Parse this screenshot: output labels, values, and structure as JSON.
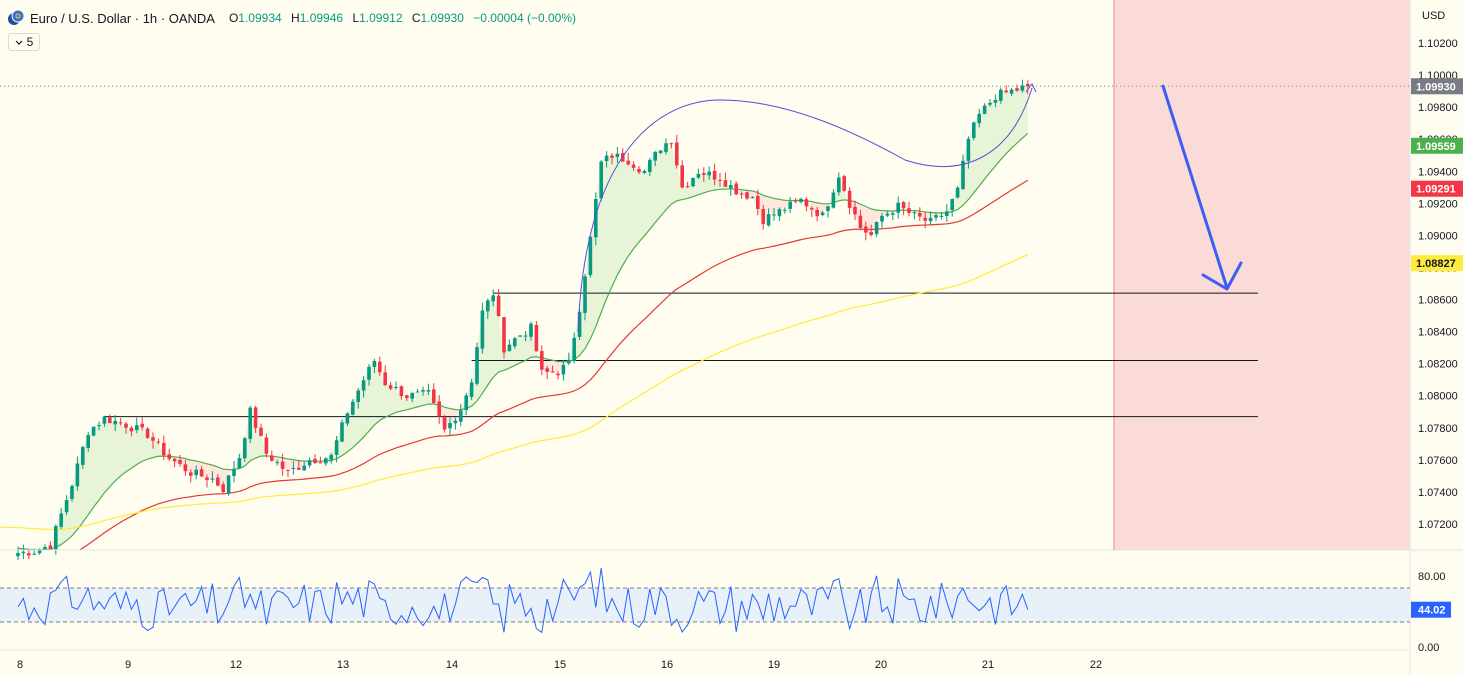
{
  "header": {
    "title": "Euro / U.S. Dollar · 1h · OANDA",
    "open_label": "O",
    "open": "1.09934",
    "high_label": "H",
    "high": "1.09946",
    "low_label": "L",
    "low": "1.09912",
    "close_label": "C",
    "close": "1.09930",
    "change": "−0.00004 (−0.00%)"
  },
  "collapse_button": {
    "label": "5"
  },
  "currency": "USD",
  "colors": {
    "up": "#089981",
    "down": "#f23645",
    "ma_fast": "#4caf50",
    "ma_mid": "#e53935",
    "ma_slow": "#ffeb3b",
    "rsi": "#2962ff",
    "projection": "#fadbd8",
    "arrow": "#3d5ef5"
  },
  "price_tags": [
    {
      "value": "1.09930",
      "color": "#787b86"
    },
    {
      "value": "1.09559",
      "color": "#4caf50"
    },
    {
      "value": "1.09291",
      "color": "#f23645"
    },
    {
      "value": "1.08827",
      "color": "#ffeb3b"
    }
  ],
  "rsi_tag": {
    "value": "44.02"
  },
  "chart_data": {
    "type": "candlestick",
    "symbol": "Euro / U.S. Dollar",
    "interval": "1h",
    "y_axis_ticks": [
      "1.07200",
      "1.07400",
      "1.07600",
      "1.07800",
      "1.08000",
      "1.08200",
      "1.08400",
      "1.08600",
      "1.08800",
      "1.09000",
      "1.09200",
      "1.09400",
      "1.09600",
      "1.09800",
      "1.10000",
      "1.10200"
    ],
    "ylim": [
      1.0702,
      1.1043
    ],
    "x_axis_ticks": [
      "8",
      "9",
      "12",
      "13",
      "14",
      "15",
      "16",
      "19",
      "20",
      "21",
      "22"
    ],
    "candle_anchors_close": [
      [
        0,
        1.0702
      ],
      [
        3,
        1.0703
      ],
      [
        6,
        1.0707
      ],
      [
        10,
        1.0745
      ],
      [
        13,
        1.0778
      ],
      [
        16,
        1.0786
      ],
      [
        20,
        1.0782
      ],
      [
        24,
        1.0776
      ],
      [
        28,
        1.0761
      ],
      [
        32,
        1.0752
      ],
      [
        36,
        1.0748
      ],
      [
        38,
        1.0742
      ],
      [
        41,
        1.0762
      ],
      [
        43,
        1.079
      ],
      [
        46,
        1.0764
      ],
      [
        50,
        1.0752
      ],
      [
        54,
        1.076
      ],
      [
        58,
        1.0762
      ],
      [
        61,
        1.079
      ],
      [
        64,
        1.081
      ],
      [
        66,
        1.0822
      ],
      [
        68,
        1.0808
      ],
      [
        72,
        1.08
      ],
      [
        76,
        1.0801
      ],
      [
        79,
        1.0778
      ],
      [
        82,
        1.0792
      ],
      [
        84,
        1.081
      ],
      [
        86,
        1.0852
      ],
      [
        88,
        1.0864
      ],
      [
        90,
        1.083
      ],
      [
        93,
        1.0838
      ],
      [
        95,
        1.0842
      ],
      [
        97,
        1.0814
      ],
      [
        100,
        1.0815
      ],
      [
        102,
        1.082
      ],
      [
        104,
        1.0855
      ],
      [
        106,
        1.0898
      ],
      [
        108,
        1.0945
      ],
      [
        110,
        1.095
      ],
      [
        113,
        1.0947
      ],
      [
        116,
        1.094
      ],
      [
        119,
        1.0955
      ],
      [
        121,
        1.096
      ],
      [
        123,
        1.093
      ],
      [
        126,
        1.094
      ],
      [
        130,
        1.0936
      ],
      [
        133,
        1.0928
      ],
      [
        136,
        1.0924
      ],
      [
        138,
        1.091
      ],
      [
        141,
        1.0915
      ],
      [
        145,
        1.0922
      ],
      [
        149,
        1.0912
      ],
      [
        152,
        1.0938
      ],
      [
        154,
        1.092
      ],
      [
        156,
        1.0905
      ],
      [
        158,
        1.09
      ],
      [
        160,
        1.0912
      ],
      [
        163,
        1.0918
      ],
      [
        166,
        1.0912
      ],
      [
        169,
        1.0908
      ],
      [
        172,
        1.0915
      ],
      [
        174,
        1.0928
      ],
      [
        176,
        1.096
      ],
      [
        178,
        1.0975
      ],
      [
        181,
        1.0987
      ],
      [
        184,
        1.099
      ],
      [
        187,
        1.0993
      ]
    ],
    "moving_averages": [
      {
        "name": "",
        "color": "#4caf50",
        "end_value": 1.09559
      },
      {
        "name": "",
        "color": "#e53935",
        "end_value": 1.09291
      },
      {
        "name": "",
        "color": "#ffeb3b",
        "end_value": 1.08827
      }
    ],
    "horizontal_levels": [
      1.0864,
      1.0822,
      1.0787
    ],
    "current_price": 1.0993,
    "projection": {
      "direction": "down",
      "target": 1.0864
    },
    "rsi": {
      "ticks": [
        "80.00",
        "0.00"
      ],
      "band": [
        30,
        70
      ],
      "last": 44.02
    }
  }
}
